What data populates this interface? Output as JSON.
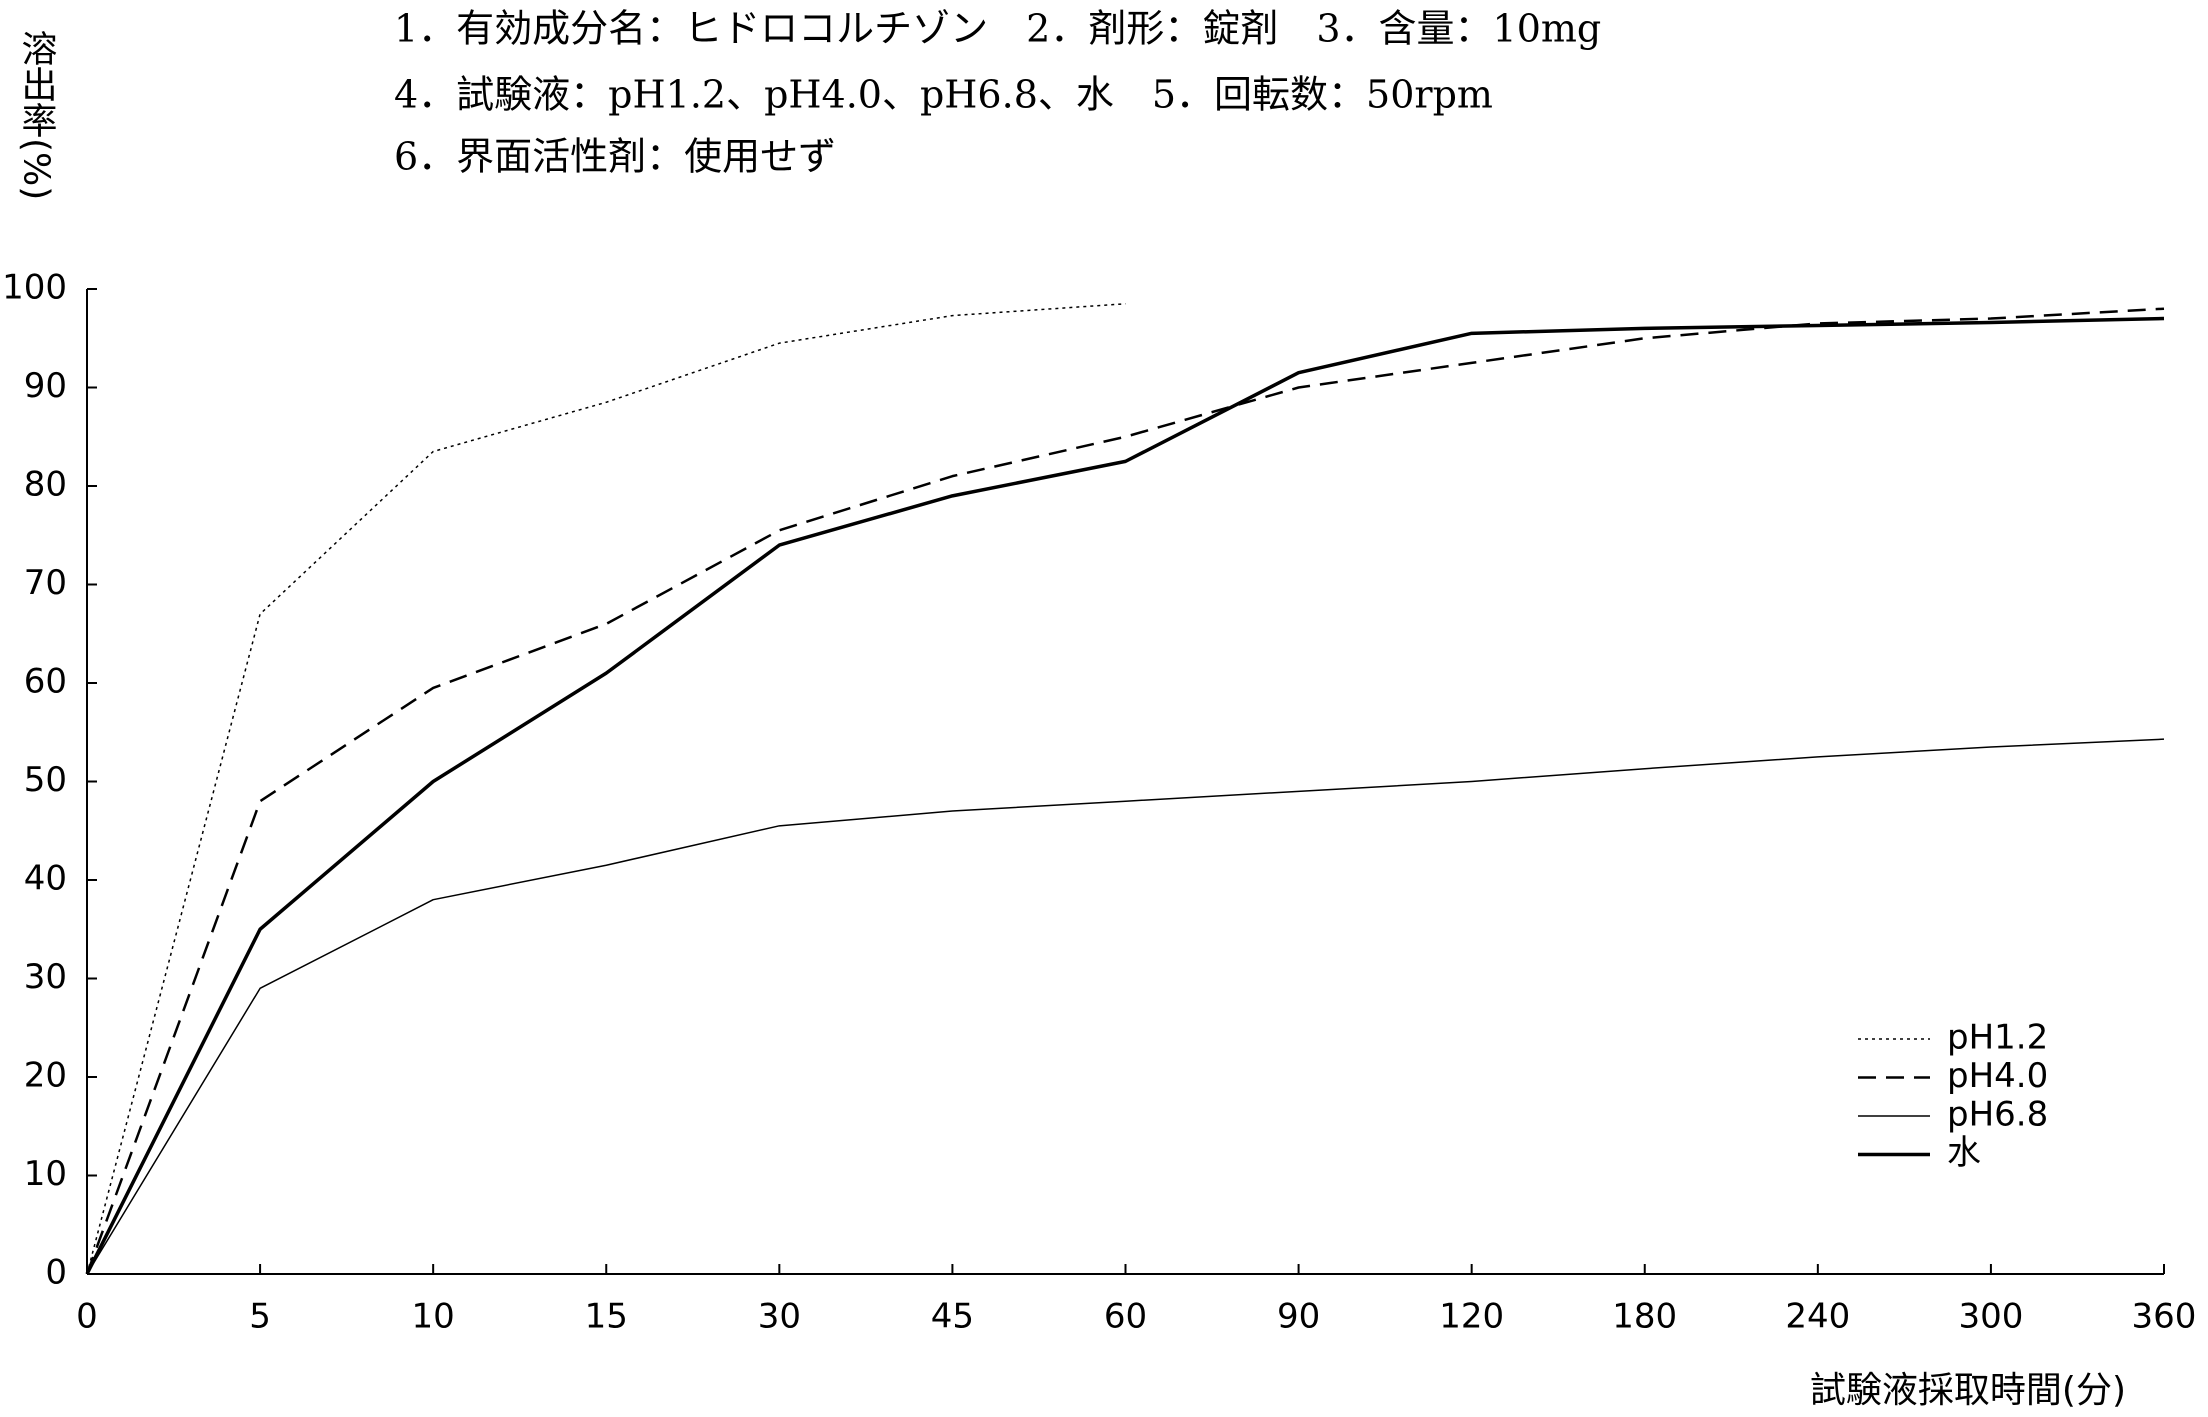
{
  "chart_data": {
    "type": "line",
    "title": "1．有効成分名：ヒドロコルチゾン　2．剤形：錠剤　3．含量：10mg",
    "subtitle": [
      "4．試験液：pH1.2、pH4.0、pH6.8、水　5．回転数：50rpm",
      "6．界面活性剤：使用せず"
    ],
    "y_label": "溶出率(%)",
    "x_label": "試験液採取時間(分)",
    "categories": [
      "0",
      "5",
      "10",
      "15",
      "30",
      "45",
      "60",
      "90",
      "120",
      "180",
      "240",
      "300",
      "360"
    ],
    "series": [
      {
        "name": "pH1.2",
        "color": "#000000",
        "style": "dotted",
        "values": [
          0,
          67,
          83.5,
          88.5,
          94.5,
          97.3,
          98.5,
          null,
          null,
          null,
          null,
          null,
          null
        ]
      },
      {
        "name": "pH4.0",
        "color": "#000000",
        "style": "dashed",
        "values": [
          0,
          48,
          59.5,
          66,
          75.5,
          81,
          85,
          90,
          92.5,
          95,
          96.5,
          97,
          98
        ]
      },
      {
        "name": "pH6.8",
        "color": "#000000",
        "style": "thin",
        "values": [
          0,
          29,
          38,
          41.5,
          45.5,
          47,
          48,
          49,
          50,
          51.3,
          52.5,
          53.5,
          54.3
        ]
      },
      {
        "name": "水",
        "color": "#000000",
        "style": "thick",
        "values": [
          0,
          35,
          50,
          61,
          74,
          79,
          82.5,
          91.5,
          95.5,
          96,
          96.3,
          96.6,
          97
        ]
      }
    ],
    "ylim": [
      0,
      100
    ],
    "yticks": [
      0,
      10,
      20,
      30,
      40,
      50,
      60,
      70,
      80,
      90,
      100
    ],
    "legend": "lower right"
  }
}
